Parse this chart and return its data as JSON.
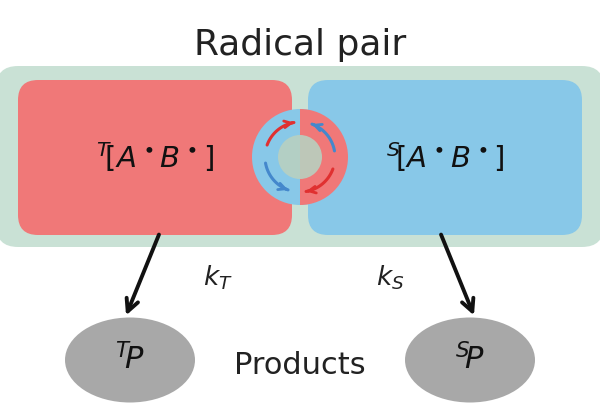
{
  "title": "Radical pair",
  "title_fontsize": 26,
  "bg_color": "#ffffff",
  "green_bg_color": "#b8d8c8",
  "green_bg_alpha": 0.75,
  "red_pill_color": "#f07878",
  "blue_pill_color": "#88c8e8",
  "center_circle_color": "#88c8e8",
  "center_inner_color": "#b8d0c0",
  "gray_ellipse_color": "#a8a8a8",
  "arrow_color": "#111111",
  "red_arrow_color": "#e03030",
  "blue_arrow_color": "#4488cc",
  "products_label": "Products",
  "products_fontsize": 22,
  "kT_label": "$k_T$",
  "kS_label": "$k_S$",
  "rate_fontsize": 19,
  "left_pill_text": "$^T\\![A^\\bullet B^\\bullet]$",
  "right_pill_text": "$^S\\![A^\\bullet B^\\bullet]$",
  "left_product_text": "$^T\\!P$",
  "right_product_text": "$^S\\!P$"
}
